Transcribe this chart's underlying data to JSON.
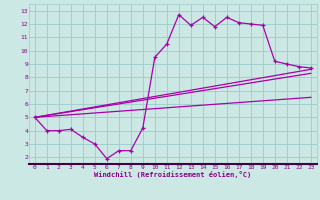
{
  "xlabel": "Windchill (Refroidissement éolien,°C)",
  "bg_color": "#cce8e4",
  "grid_color": "#99cccc",
  "line_color": "#aa00aa",
  "xlim": [
    -0.5,
    23.5
  ],
  "ylim": [
    1.5,
    13.5
  ],
  "xticks": [
    0,
    1,
    2,
    3,
    4,
    5,
    6,
    7,
    8,
    9,
    10,
    11,
    12,
    13,
    14,
    15,
    16,
    17,
    18,
    19,
    20,
    21,
    22,
    23
  ],
  "yticks": [
    2,
    3,
    4,
    5,
    6,
    7,
    8,
    9,
    10,
    11,
    12,
    13
  ],
  "series1_x": [
    0,
    1,
    2,
    3,
    4,
    5,
    6,
    7,
    8,
    9,
    10,
    11,
    12,
    13,
    14,
    15,
    16,
    17,
    18,
    19,
    20,
    21,
    22,
    23
  ],
  "series1_y": [
    5.0,
    4.0,
    4.0,
    4.1,
    3.5,
    3.0,
    1.9,
    2.5,
    2.5,
    4.2,
    9.5,
    10.5,
    12.7,
    11.9,
    12.5,
    11.8,
    12.5,
    12.1,
    12.0,
    11.9,
    9.2,
    9.0,
    8.8,
    8.7
  ],
  "series2_x": [
    0,
    23
  ],
  "series2_y": [
    5.0,
    8.6
  ],
  "series3_x": [
    0,
    23
  ],
  "series3_y": [
    5.0,
    6.5
  ],
  "series4_x": [
    0,
    23
  ],
  "series4_y": [
    5.0,
    8.3
  ],
  "label_color": "#880088",
  "tick_color": "#880088",
  "spine_color": "#440044"
}
